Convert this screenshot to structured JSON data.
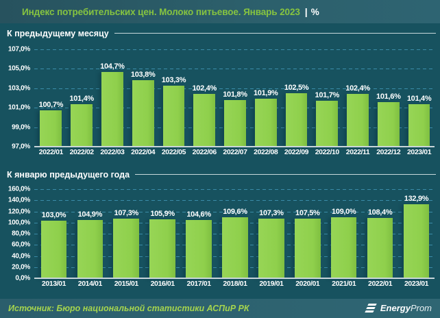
{
  "header": {
    "title": "Индекс потребительских цен. Молоко питьевое. Январь 2023",
    "pipe": "|",
    "unit": "%"
  },
  "colors": {
    "background": "#17525f",
    "header_bar": "#2c5f6b",
    "title_accent": "#86c440",
    "bar_fill": "#92d050",
    "gridline": "#3b8ca8",
    "axis_line": "#c9d6da",
    "text": "#ffffff",
    "source_text": "#a5d44e"
  },
  "chart_data": [
    {
      "type": "bar",
      "title": "К предыдущему месяцу",
      "categories": [
        "2022/01",
        "2022/02",
        "2022/03",
        "2022/04",
        "2022/05",
        "2022/06",
        "2022/07",
        "2022/08",
        "2022/09",
        "2022/10",
        "2022/11",
        "2022/12",
        "2023/01"
      ],
      "values": [
        100.7,
        101.4,
        104.7,
        103.8,
        103.3,
        102.4,
        101.8,
        101.9,
        102.5,
        101.7,
        102.4,
        101.6,
        101.4
      ],
      "value_labels": [
        "100,7%",
        "101,4%",
        "104,7%",
        "103,8%",
        "103,3%",
        "102,4%",
        "101,8%",
        "101,9%",
        "102,5%",
        "101,7%",
        "102,4%",
        "101,6%",
        "101,4%"
      ],
      "xlabel": "",
      "ylabel": "",
      "ylim": [
        97,
        107
      ],
      "grid": "dashed-horizontal",
      "legend": "none",
      "yticks": [
        {
          "v": 107,
          "label": "107,0%"
        },
        {
          "v": 105,
          "label": "105,0%"
        },
        {
          "v": 103,
          "label": "103,0%"
        },
        {
          "v": 101,
          "label": "101,0%"
        },
        {
          "v": 99,
          "label": "99,0%"
        },
        {
          "v": 97,
          "label": "97,0%"
        }
      ]
    },
    {
      "type": "bar",
      "title": "К январю предыдущего года",
      "categories": [
        "2013/01",
        "2014/01",
        "2015/01",
        "2016/01",
        "2017/01",
        "2018/01",
        "2019/01",
        "2020/01",
        "2021/01",
        "2022/01",
        "2023/01"
      ],
      "values": [
        103.0,
        104.9,
        107.3,
        105.9,
        104.6,
        109.6,
        107.3,
        107.5,
        109.0,
        108.4,
        132.9
      ],
      "value_labels": [
        "103,0%",
        "104,9%",
        "107,3%",
        "105,9%",
        "104,6%",
        "109,6%",
        "107,3%",
        "107,5%",
        "109,0%",
        "108,4%",
        "132,9%"
      ],
      "xlabel": "",
      "ylabel": "",
      "ylim": [
        0,
        160
      ],
      "grid": "dashed-horizontal",
      "legend": "none",
      "yticks": [
        {
          "v": 160,
          "label": "160,0%"
        },
        {
          "v": 140,
          "label": "140,0%"
        },
        {
          "v": 120,
          "label": "120,0%"
        },
        {
          "v": 100,
          "label": "100,0%"
        },
        {
          "v": 80,
          "label": "80,0%"
        },
        {
          "v": 60,
          "label": "60,0%"
        },
        {
          "v": 40,
          "label": "40,0%"
        },
        {
          "v": 20,
          "label": "20,0%"
        },
        {
          "v": 0,
          "label": "0,0%"
        }
      ]
    }
  ],
  "footer": {
    "source": "Источник: Бюро национальной статистики АСПиР РК",
    "logo_bold": "Energy",
    "logo_light": "Prom"
  }
}
